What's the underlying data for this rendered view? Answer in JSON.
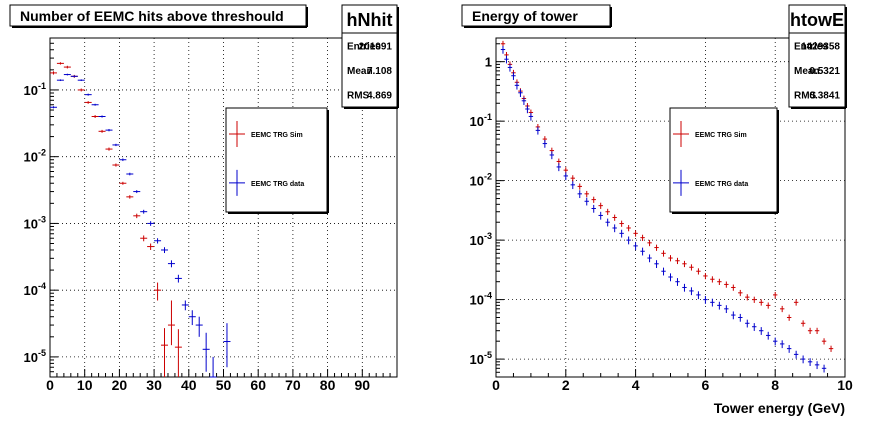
{
  "colors": {
    "sim": "#cc0000",
    "data": "#0000cc",
    "frame": "#000000",
    "grid": "#000000"
  },
  "chart_data": [
    {
      "type": "scatter",
      "title": "Number of EEMC hits above threshould",
      "xlabel": "",
      "ylabel": "",
      "xlim": [
        0,
        100
      ],
      "ylim": [
        5e-06,
        0.6
      ],
      "log_y": true,
      "grid": true,
      "legend": "right",
      "x_ticks": [
        "0",
        "10",
        "20",
        "30",
        "40",
        "50",
        "60",
        "70",
        "80",
        "90"
      ],
      "y_ticks": [
        "10-5",
        "10-4",
        "10-3",
        "10-2",
        "10-1"
      ],
      "stats": {
        "name": "hNhit",
        "rows": [
          [
            "Entries",
            "201091"
          ],
          [
            "Mean",
            "7.108"
          ],
          [
            "RMS",
            "4.869"
          ]
        ]
      },
      "series": [
        {
          "name": "EEMC TRG Sim",
          "color": "sim",
          "x": [
            1,
            3,
            5,
            7,
            9,
            11,
            13,
            15,
            17,
            19,
            21,
            23,
            25,
            27,
            29,
            31,
            33,
            35,
            37
          ],
          "y": [
            0.18,
            0.25,
            0.22,
            0.16,
            0.1,
            0.065,
            0.04,
            0.024,
            0.013,
            0.0075,
            0.004,
            0.0025,
            0.0013,
            0.0006,
            0.00045,
            0.0001,
            1.5e-05,
            3e-05,
            1.4e-05
          ],
          "err_lo": [
            0.01,
            0.01,
            0.01,
            0.008,
            0.005,
            0.003,
            0.002,
            0.0012,
            0.0007,
            0.0004,
            0.0002,
            0.00015,
            0.0001,
            6e-05,
            5e-05,
            3e-05,
            1e-05,
            1.5e-05,
            1e-05
          ],
          "err_hi": [
            0.01,
            0.01,
            0.01,
            0.008,
            0.005,
            0.003,
            0.002,
            0.0012,
            0.0007,
            0.0004,
            0.0002,
            0.00015,
            0.0001,
            6e-05,
            5e-05,
            3e-05,
            1.2e-05,
            4e-05,
            1.2e-05
          ]
        },
        {
          "name": "EEMC TRG data",
          "color": "data",
          "x": [
            1,
            3,
            5,
            7,
            9,
            11,
            13,
            15,
            17,
            19,
            21,
            23,
            25,
            27,
            29,
            31,
            33,
            35,
            37,
            39,
            41,
            43,
            45,
            47,
            51
          ],
          "y": [
            0.055,
            0.14,
            0.17,
            0.16,
            0.14,
            0.085,
            0.06,
            0.04,
            0.025,
            0.015,
            0.009,
            0.0055,
            0.003,
            0.0015,
            0.001,
            0.00055,
            0.0004,
            0.00025,
            0.00015,
            6e-05,
            4e-05,
            3e-05,
            1.3e-05,
            5e-06,
            1.7e-05
          ],
          "err_lo": [
            0.002,
            0.004,
            0.005,
            0.005,
            0.004,
            0.003,
            0.002,
            0.0015,
            0.001,
            0.0006,
            0.0004,
            0.00025,
            0.00015,
            0.0001,
            8e-05,
            5e-05,
            4e-05,
            3e-05,
            2e-05,
            1e-05,
            1e-05,
            1e-05,
            7e-06,
            3e-06,
            1e-05
          ],
          "err_hi": [
            0.002,
            0.004,
            0.005,
            0.005,
            0.004,
            0.003,
            0.002,
            0.0015,
            0.001,
            0.0006,
            0.0004,
            0.00025,
            0.00015,
            0.0001,
            8e-05,
            5e-05,
            4e-05,
            3e-05,
            2e-05,
            1e-05,
            1e-05,
            1e-05,
            1e-05,
            5e-06,
            1.5e-05
          ]
        }
      ]
    },
    {
      "type": "scatter",
      "title": "Energy of tower",
      "xlabel": "Tower energy (GeV)",
      "ylabel": "",
      "xlim": [
        0,
        10
      ],
      "ylim": [
        5e-06,
        2.5
      ],
      "log_y": true,
      "grid": true,
      "legend": "right",
      "x_ticks": [
        "0",
        "2",
        "4",
        "6",
        "8",
        "10"
      ],
      "y_ticks": [
        "10-5",
        "10-4",
        "10-3",
        "10-2",
        "10-1",
        "1"
      ],
      "stats": {
        "name": "htowE",
        "rows": [
          [
            "Entries",
            "1429358"
          ],
          [
            "Mean",
            "0.5321"
          ],
          [
            "RMS",
            "0.3841"
          ]
        ]
      },
      "series": [
        {
          "name": "EEMC TRG Sim",
          "color": "sim",
          "x": [
            0.2,
            0.3,
            0.4,
            0.5,
            0.6,
            0.7,
            0.8,
            0.9,
            1.0,
            1.2,
            1.4,
            1.6,
            1.8,
            2.0,
            2.2,
            2.4,
            2.6,
            2.8,
            3.0,
            3.2,
            3.4,
            3.6,
            3.8,
            4.0,
            4.2,
            4.4,
            4.6,
            4.8,
            5.0,
            5.2,
            5.4,
            5.6,
            5.8,
            6.0,
            6.2,
            6.4,
            6.6,
            6.8,
            7.0,
            7.2,
            7.4,
            7.6,
            7.8,
            8.0,
            8.2,
            8.4,
            8.6,
            8.8,
            9.0,
            9.2,
            9.4,
            9.6
          ],
          "y": [
            2.0,
            1.3,
            0.9,
            0.65,
            0.45,
            0.32,
            0.24,
            0.18,
            0.14,
            0.08,
            0.05,
            0.032,
            0.021,
            0.015,
            0.011,
            0.008,
            0.006,
            0.0048,
            0.0038,
            0.003,
            0.0024,
            0.0019,
            0.0016,
            0.0013,
            0.0011,
            0.0009,
            0.00075,
            0.0006,
            0.0005,
            0.00045,
            0.0004,
            0.00035,
            0.0003,
            0.00025,
            0.00022,
            0.0002,
            0.00018,
            0.00016,
            0.00013,
            0.00011,
            0.0001,
            9e-05,
            8e-05,
            0.00012,
            7e-05,
            5e-05,
            9e-05,
            4e-05,
            3e-05,
            3e-05,
            2e-05,
            1.5e-05
          ],
          "err_rel": 0.12
        },
        {
          "name": "EEMC TRG data",
          "color": "data",
          "x": [
            0.2,
            0.3,
            0.4,
            0.5,
            0.6,
            0.7,
            0.8,
            0.9,
            1.0,
            1.2,
            1.4,
            1.6,
            1.8,
            2.0,
            2.2,
            2.4,
            2.6,
            2.8,
            3.0,
            3.2,
            3.4,
            3.6,
            3.8,
            4.0,
            4.2,
            4.4,
            4.6,
            4.8,
            5.0,
            5.2,
            5.4,
            5.6,
            5.8,
            6.0,
            6.2,
            6.4,
            6.6,
            6.8,
            7.0,
            7.2,
            7.4,
            7.6,
            7.8,
            8.0,
            8.2,
            8.4,
            8.6,
            8.8,
            9.0,
            9.2,
            9.4
          ],
          "y": [
            1.6,
            1.1,
            0.8,
            0.58,
            0.4,
            0.3,
            0.22,
            0.16,
            0.12,
            0.07,
            0.042,
            0.027,
            0.017,
            0.012,
            0.0085,
            0.006,
            0.0045,
            0.0034,
            0.0026,
            0.002,
            0.0016,
            0.0013,
            0.001,
            0.0008,
            0.00065,
            0.0005,
            0.0004,
            0.0003,
            0.00024,
            0.0002,
            0.00016,
            0.00014,
            0.00012,
            0.0001,
            9e-05,
            8e-05,
            7e-05,
            5.5e-05,
            5e-05,
            4e-05,
            3.5e-05,
            3e-05,
            2.5e-05,
            2e-05,
            1.8e-05,
            1.5e-05,
            1.2e-05,
            1e-05,
            9e-06,
            8e-06,
            7e-06
          ],
          "err_rel": 0.15
        }
      ]
    }
  ]
}
